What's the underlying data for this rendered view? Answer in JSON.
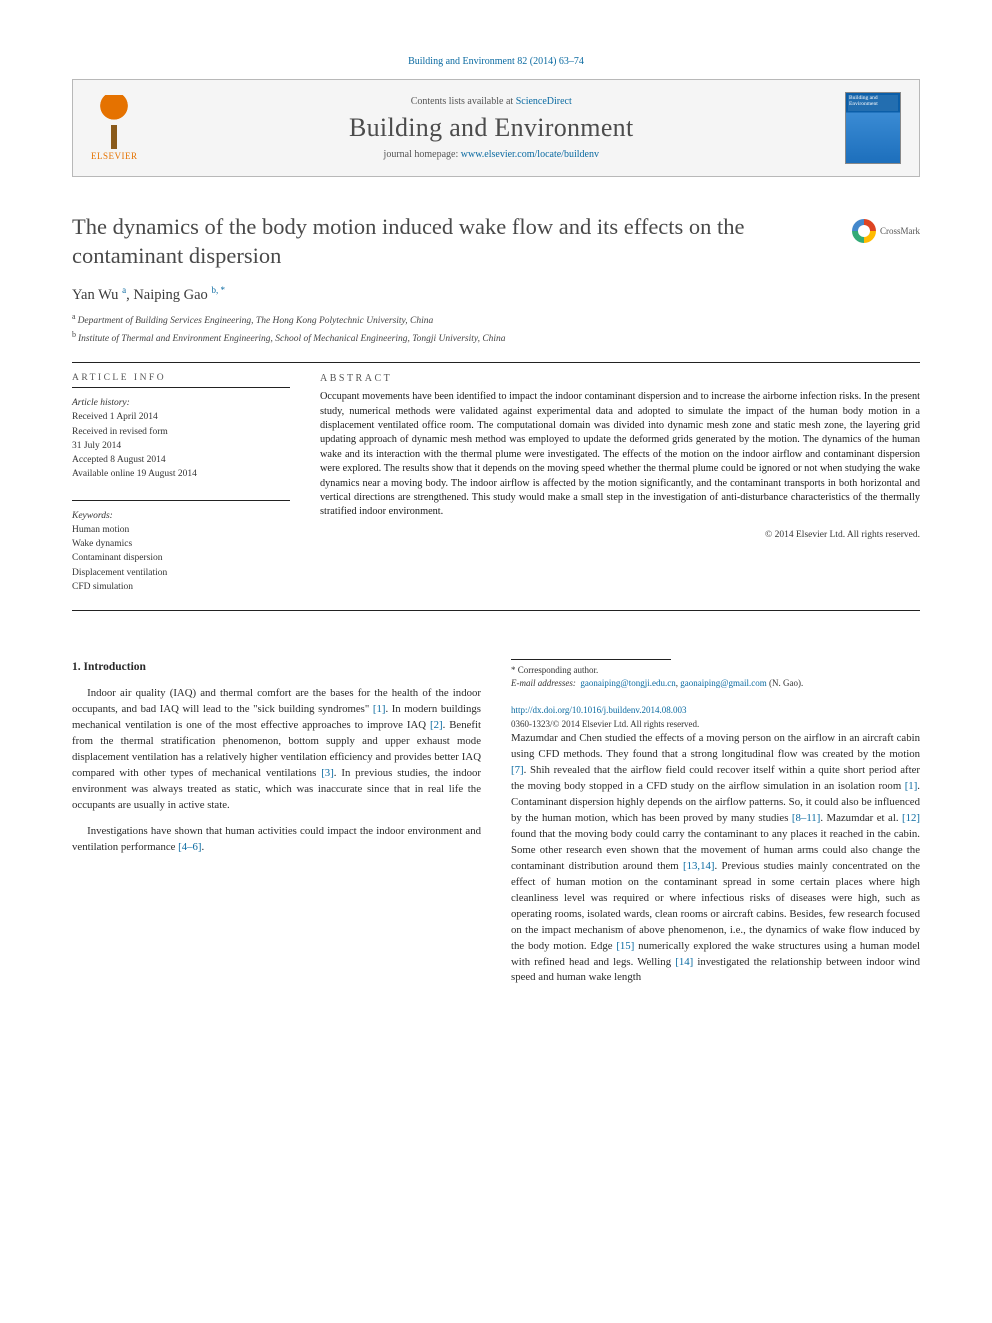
{
  "citation": "Building and Environment 82 (2014) 63–74",
  "header": {
    "publisher_name": "ELSEVIER",
    "contents_prefix": "Contents lists available at ",
    "contents_link": "ScienceDirect",
    "journal": "Building and Environment",
    "homepage_prefix": "journal homepage: ",
    "homepage_link": "www.elsevier.com/locate/buildenv",
    "cover_label": "Building and Environment"
  },
  "title": "The dynamics of the body motion induced wake flow and its effects on the contaminant dispersion",
  "crossmark_label": "CrossMark",
  "authors_html": "Yan Wu <sup>a</sup>, Naiping Gao <sup>b, *</sup>",
  "affiliations": [
    {
      "sup": "a",
      "text": "Department of Building Services Engineering, The Hong Kong Polytechnic University, China"
    },
    {
      "sup": "b",
      "text": "Institute of Thermal and Environment Engineering, School of Mechanical Engineering, Tongji University, China"
    }
  ],
  "article_info": {
    "heading": "ARTICLE INFO",
    "history_label": "Article history:",
    "history": [
      "Received 1 April 2014",
      "Received in revised form",
      "31 July 2014",
      "Accepted 8 August 2014",
      "Available online 19 August 2014"
    ],
    "keywords_label": "Keywords:",
    "keywords": [
      "Human motion",
      "Wake dynamics",
      "Contaminant dispersion",
      "Displacement ventilation",
      "CFD simulation"
    ]
  },
  "abstract": {
    "heading": "ABSTRACT",
    "text": "Occupant movements have been identified to impact the indoor contaminant dispersion and to increase the airborne infection risks. In the present study, numerical methods were validated against experimental data and adopted to simulate the impact of the human body motion in a displacement ventilated office room. The computational domain was divided into dynamic mesh zone and static mesh zone, the layering grid updating approach of dynamic mesh method was employed to update the deformed grids generated by the motion. The dynamics of the human wake and its interaction with the thermal plume were investigated. The effects of the motion on the indoor airflow and contaminant dispersion were explored. The results show that it depends on the moving speed whether the thermal plume could be ignored or not when studying the wake dynamics near a moving body. The indoor airflow is affected by the motion significantly, and the contaminant transports in both horizontal and vertical directions are strengthened. This study would make a small step in the investigation of anti-disturbance characteristics of the thermally stratified indoor environment.",
    "copyright": "© 2014 Elsevier Ltd. All rights reserved."
  },
  "section1": {
    "heading": "1. Introduction",
    "p1_a": "Indoor air quality (IAQ) and thermal comfort are the bases for the health of the indoor occupants, and bad IAQ will lead to the \"sick building syndromes\" ",
    "p1_ref1": "[1]",
    "p1_b": ". In modern buildings mechanical ventilation is one of the most effective approaches to improve IAQ ",
    "p1_ref2": "[2]",
    "p1_c": ". Benefit from the thermal stratification phenomenon, bottom supply and upper exhaust mode displacement ventilation has a relatively higher ventilation efficiency and provides better IAQ compared with other types of mechanical ventilations ",
    "p1_ref3": "[3]",
    "p1_d": ". In previous studies, the indoor environment was always treated as static, which was inaccurate since that in real life the occupants are usually in active state.",
    "p2_a": "Investigations have shown that human activities could impact the indoor environment and ventilation performance ",
    "p2_ref": "[4–6]",
    "p2_b": ".",
    "p3_a": "Mazumdar and Chen studied the effects of a moving person on the airflow in an aircraft cabin using CFD methods. They found that a strong longitudinal flow was created by the motion ",
    "p3_ref7": "[7]",
    "p3_b": ". Shih revealed that the airflow field could recover itself within a quite short period after the moving body stopped in a CFD study on the airflow simulation in an isolation room ",
    "p3_ref1": "[1]",
    "p3_c": ". Contaminant dispersion highly depends on the airflow patterns. So, it could also be influenced by the human motion, which has been proved by many studies ",
    "p3_ref811": "[8–11]",
    "p3_d": ". Mazumdar et al. ",
    "p3_ref12": "[12]",
    "p3_e": " found that the moving body could carry the contaminant to any places it reached in the cabin. Some other research even shown that the movement of human arms could also change the contaminant distribution around them ",
    "p3_ref1314": "[13,14]",
    "p3_f": ". Previous studies mainly concentrated on the effect of human motion on the contaminant spread in some certain places where high cleanliness level was required or where infectious risks of diseases were high, such as operating rooms, isolated wards, clean rooms or aircraft cabins. Besides, few research focused on the impact mechanism of above phenomenon, i.e., the dynamics of wake flow induced by the body motion. Edge ",
    "p3_ref15": "[15]",
    "p3_g": " numerically explored the wake structures using a human model with refined head and legs. Welling ",
    "p3_ref14": "[14]",
    "p3_h": " investigated the relationship between indoor wind speed and human wake length"
  },
  "footnote": {
    "corr_label": "* Corresponding author.",
    "email_label": "E-mail addresses:",
    "email1": "gaonaiping@tongji.edu.cn",
    "sep": ", ",
    "email2": "gaonaiping@gmail.com",
    "name_suffix": "(N. Gao)."
  },
  "doi": {
    "link": "http://dx.doi.org/10.1016/j.buildenv.2014.08.003",
    "issn_line": "0360-1323/© 2014 Elsevier Ltd. All rights reserved."
  }
}
